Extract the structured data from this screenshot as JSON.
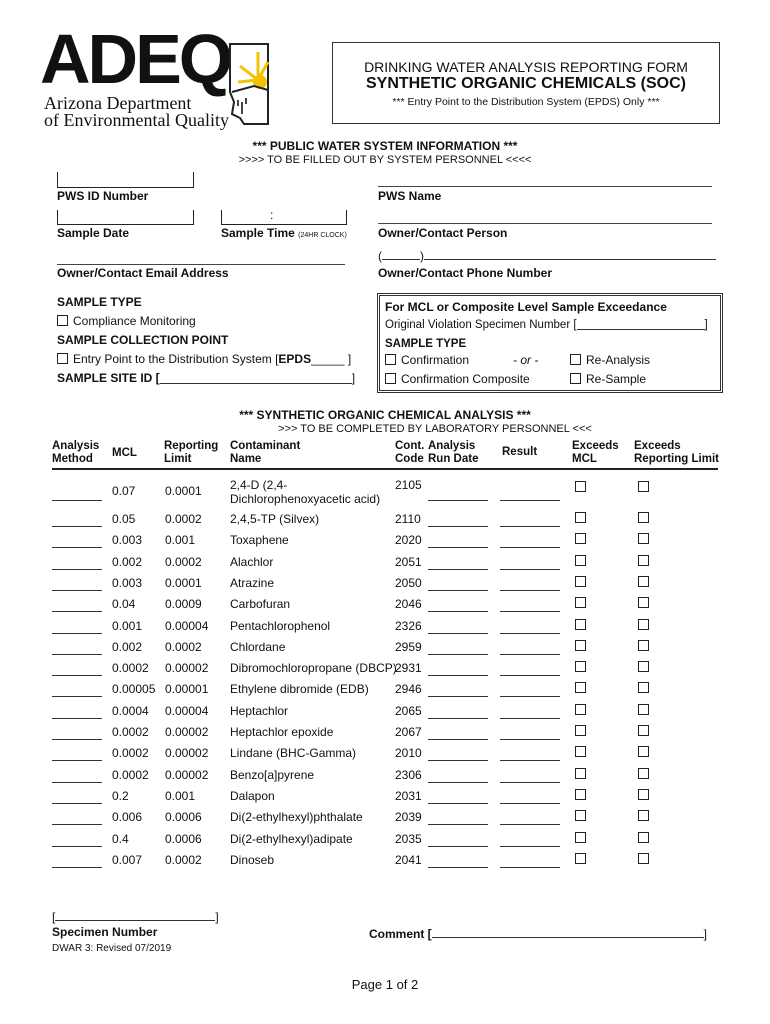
{
  "logo": {
    "text": "ADEQ",
    "line1": "Arizona Department",
    "line2": "of Environmental Quality",
    "colors": {
      "sun": "#f2c400",
      "text": "#1a1a1a"
    }
  },
  "header": {
    "line1": "DRINKING WATER ANALYSIS REPORTING FORM",
    "line2": "SYNTHETIC ORGANIC CHEMICALS (SOC)",
    "line3": "*** Entry Point to the Distribution System (EPDS) Only ***"
  },
  "pws": {
    "title": "*** PUBLIC WATER SYSTEM INFORMATION ***",
    "subtitle": ">>>> TO BE FILLED OUT BY SYSTEM PERSONNEL <<<<",
    "id_label": "PWS ID Number",
    "name_label": "PWS Name",
    "date_label": "Sample Date",
    "time_label": "Sample Time",
    "time_note": "(24HR CLOCK)",
    "contact_label": "Owner/Contact Person",
    "email_label": "Owner/Contact Email Address",
    "phone_label": "Owner/Contact Phone Number"
  },
  "sample": {
    "type_title": "SAMPLE TYPE",
    "compliance": "Compliance Monitoring",
    "collection_title": "SAMPLE COLLECTION POINT",
    "epds_text": "Entry Point to the Distribution System [",
    "epds_bold": "EPDS",
    "epds_end": "_____ ]",
    "site_id": "SAMPLE SITE ID ["
  },
  "exceedance": {
    "title": "For MCL or Composite Level Sample Exceedance",
    "orig": "Original Violation Specimen Number [",
    "type_title": "SAMPLE TYPE",
    "confirmation": "Confirmation",
    "or": "- or -",
    "reanalysis": "Re-Analysis",
    "conf_composite": "Confirmation Composite",
    "resample": "Re-Sample"
  },
  "analysis": {
    "title": "*** SYNTHETIC ORGANIC CHEMICAL ANALYSIS ***",
    "subtitle": ">>> TO BE COMPLETED BY LABORATORY PERSONNEL <<<",
    "headers": {
      "method1": "Analysis",
      "method2": "Method",
      "mcl": "MCL",
      "rl1": "Reporting",
      "rl2": "Limit",
      "name1": "Contaminant",
      "name2": "Name",
      "code1": "Cont.",
      "code2": "Code",
      "date1": "Analysis",
      "date2": "Run Date",
      "result": "Result",
      "exmcl1": "Exceeds",
      "exmcl2": "MCL",
      "exrl1": "Exceeds",
      "exrl2": "Reporting Limit"
    },
    "rows": [
      {
        "mcl": "0.07",
        "rl": "0.0001",
        "name": "2,4-D (2,4-",
        "name2": "Dichlorophenoxyacetic acid)",
        "code": "2105"
      },
      {
        "mcl": "0.05",
        "rl": "0.0002",
        "name": "2,4,5-TP (Silvex)",
        "code": "2110"
      },
      {
        "mcl": "0.003",
        "rl": "0.001",
        "name": "Toxaphene",
        "code": "2020"
      },
      {
        "mcl": "0.002",
        "rl": "0.0002",
        "name": "Alachlor",
        "code": "2051"
      },
      {
        "mcl": "0.003",
        "rl": "0.0001",
        "name": "Atrazine",
        "code": "2050"
      },
      {
        "mcl": "0.04",
        "rl": "0.0009",
        "name": "Carbofuran",
        "code": "2046"
      },
      {
        "mcl": "0.001",
        "rl": "0.00004",
        "name": "Pentachlorophenol",
        "code": "2326"
      },
      {
        "mcl": "0.002",
        "rl": "0.0002",
        "name": "Chlordane",
        "code": "2959"
      },
      {
        "mcl": "0.0002",
        "rl": "0.00002",
        "name": "Dibromochloropropane (DBCP)",
        "code": "2931"
      },
      {
        "mcl": "0.00005",
        "rl": "0.00001",
        "name": "Ethylene dibromide (EDB)",
        "code": "2946"
      },
      {
        "mcl": "0.0004",
        "rl": "0.00004",
        "name": "Heptachlor",
        "code": "2065"
      },
      {
        "mcl": "0.0002",
        "rl": "0.00002",
        "name": "Heptachlor epoxide",
        "code": "2067"
      },
      {
        "mcl": "0.0002",
        "rl": "0.00002",
        "name": "Lindane (BHC-Gamma)",
        "code": "2010"
      },
      {
        "mcl": "0.0002",
        "rl": "0.00002",
        "name": "Benzo[a]pyrene",
        "code": "2306"
      },
      {
        "mcl": "0.2",
        "rl": "0.001",
        "name": "Dalapon",
        "code": "2031"
      },
      {
        "mcl": "0.006",
        "rl": "0.0006",
        "name": "Di(2-ethylhexyl)phthalate",
        "code": "2039"
      },
      {
        "mcl": "0.4",
        "rl": "0.0006",
        "name": "Di(2-ethylhexyl)adipate",
        "code": "2035"
      },
      {
        "mcl": "0.007",
        "rl": "0.0002",
        "name": "Dinoseb",
        "code": "2041"
      }
    ]
  },
  "footer": {
    "specimen": "Specimen Number",
    "comment": "Comment [",
    "revised": "DWAR 3: Revised 07/2019",
    "page": "Page 1 of 2"
  }
}
